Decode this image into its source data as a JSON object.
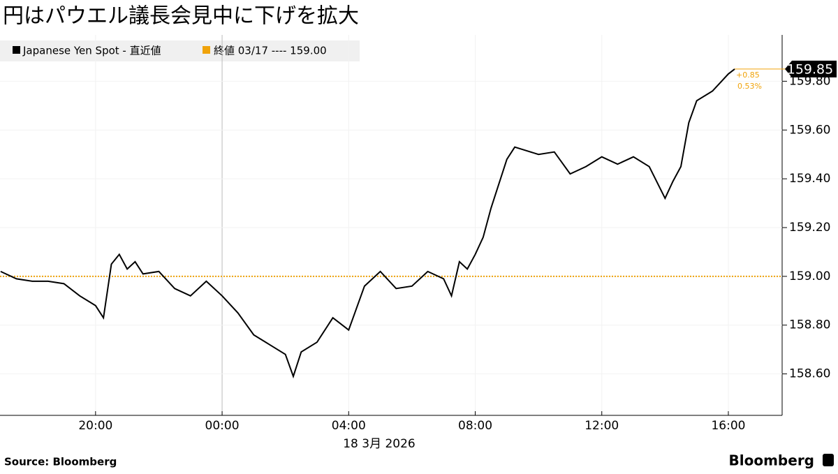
{
  "chart_data": {
    "type": "line",
    "title": "円はパウエル議長会見中に下げを拡大",
    "x": [
      -7,
      -6.5,
      -6,
      -5.5,
      -5,
      -4.5,
      -4,
      -3.75,
      -3.5,
      -3.25,
      -3,
      -2.75,
      -2.5,
      -2,
      -1.5,
      -1,
      -0.5,
      0,
      0.5,
      1,
      1.5,
      2,
      2.25,
      2.5,
      3,
      3.5,
      4,
      4.5,
      5,
      5.5,
      6,
      6.5,
      7,
      7.25,
      7.5,
      7.75,
      8,
      8.25,
      8.5,
      8.75,
      9,
      9.25,
      9.5,
      10,
      10.5,
      11,
      11.5,
      12,
      12.5,
      13,
      13.5,
      14,
      14.25,
      14.5,
      14.75,
      15,
      15.5,
      16,
      16.2
    ],
    "series": [
      {
        "name": "Japanese Yen Spot - 直近値",
        "color": "#000000",
        "values": [
          159.02,
          158.99,
          158.98,
          158.98,
          158.97,
          158.92,
          158.88,
          158.83,
          159.05,
          159.09,
          159.03,
          159.06,
          159.01,
          159.02,
          158.95,
          158.92,
          158.98,
          158.92,
          158.85,
          158.76,
          158.72,
          158.68,
          158.59,
          158.69,
          158.73,
          158.83,
          158.78,
          158.96,
          159.02,
          158.95,
          158.96,
          159.02,
          158.99,
          158.92,
          159.06,
          159.03,
          159.09,
          159.16,
          159.28,
          159.38,
          159.48,
          159.53,
          159.52,
          159.5,
          159.51,
          159.42,
          159.45,
          159.49,
          159.46,
          159.49,
          159.45,
          159.32,
          159.39,
          159.45,
          159.63,
          159.72,
          159.76,
          159.83,
          159.85
        ]
      }
    ],
    "reference_line": {
      "label": "終値 03/17 ---- 159.00",
      "value": 159.0,
      "color": "#f0a30a"
    },
    "last_value": {
      "value": 159.85,
      "label": "159.85",
      "change": {
        "value": 0.85,
        "label": "+0.85"
      },
      "change_pct": {
        "value": 0.53,
        "label": "0.53%"
      }
    },
    "xlim": [
      -7.02,
      17.7
    ],
    "xticks": [
      {
        "value": -4,
        "label": "20:00"
      },
      {
        "value": 0,
        "label": "00:00"
      },
      {
        "value": 4,
        "label": "04:00"
      },
      {
        "value": 8,
        "label": "08:00"
      },
      {
        "value": 12,
        "label": "12:00"
      },
      {
        "value": 16,
        "label": "16:00"
      }
    ],
    "x_label": "18 3月 2026",
    "ylim": [
      158.43,
      159.99
    ],
    "yticks": [
      {
        "value": 158.6,
        "label": "158.60"
      },
      {
        "value": 158.8,
        "label": "158.80"
      },
      {
        "value": 159.0,
        "label": "159.00"
      },
      {
        "value": 159.2,
        "label": "159.20"
      },
      {
        "value": 159.4,
        "label": "159.40"
      },
      {
        "value": 159.6,
        "label": "159.60"
      },
      {
        "value": 159.8,
        "label": "159.80"
      }
    ],
    "source": "Source:  Bloomberg",
    "brand": "Bloomberg"
  }
}
